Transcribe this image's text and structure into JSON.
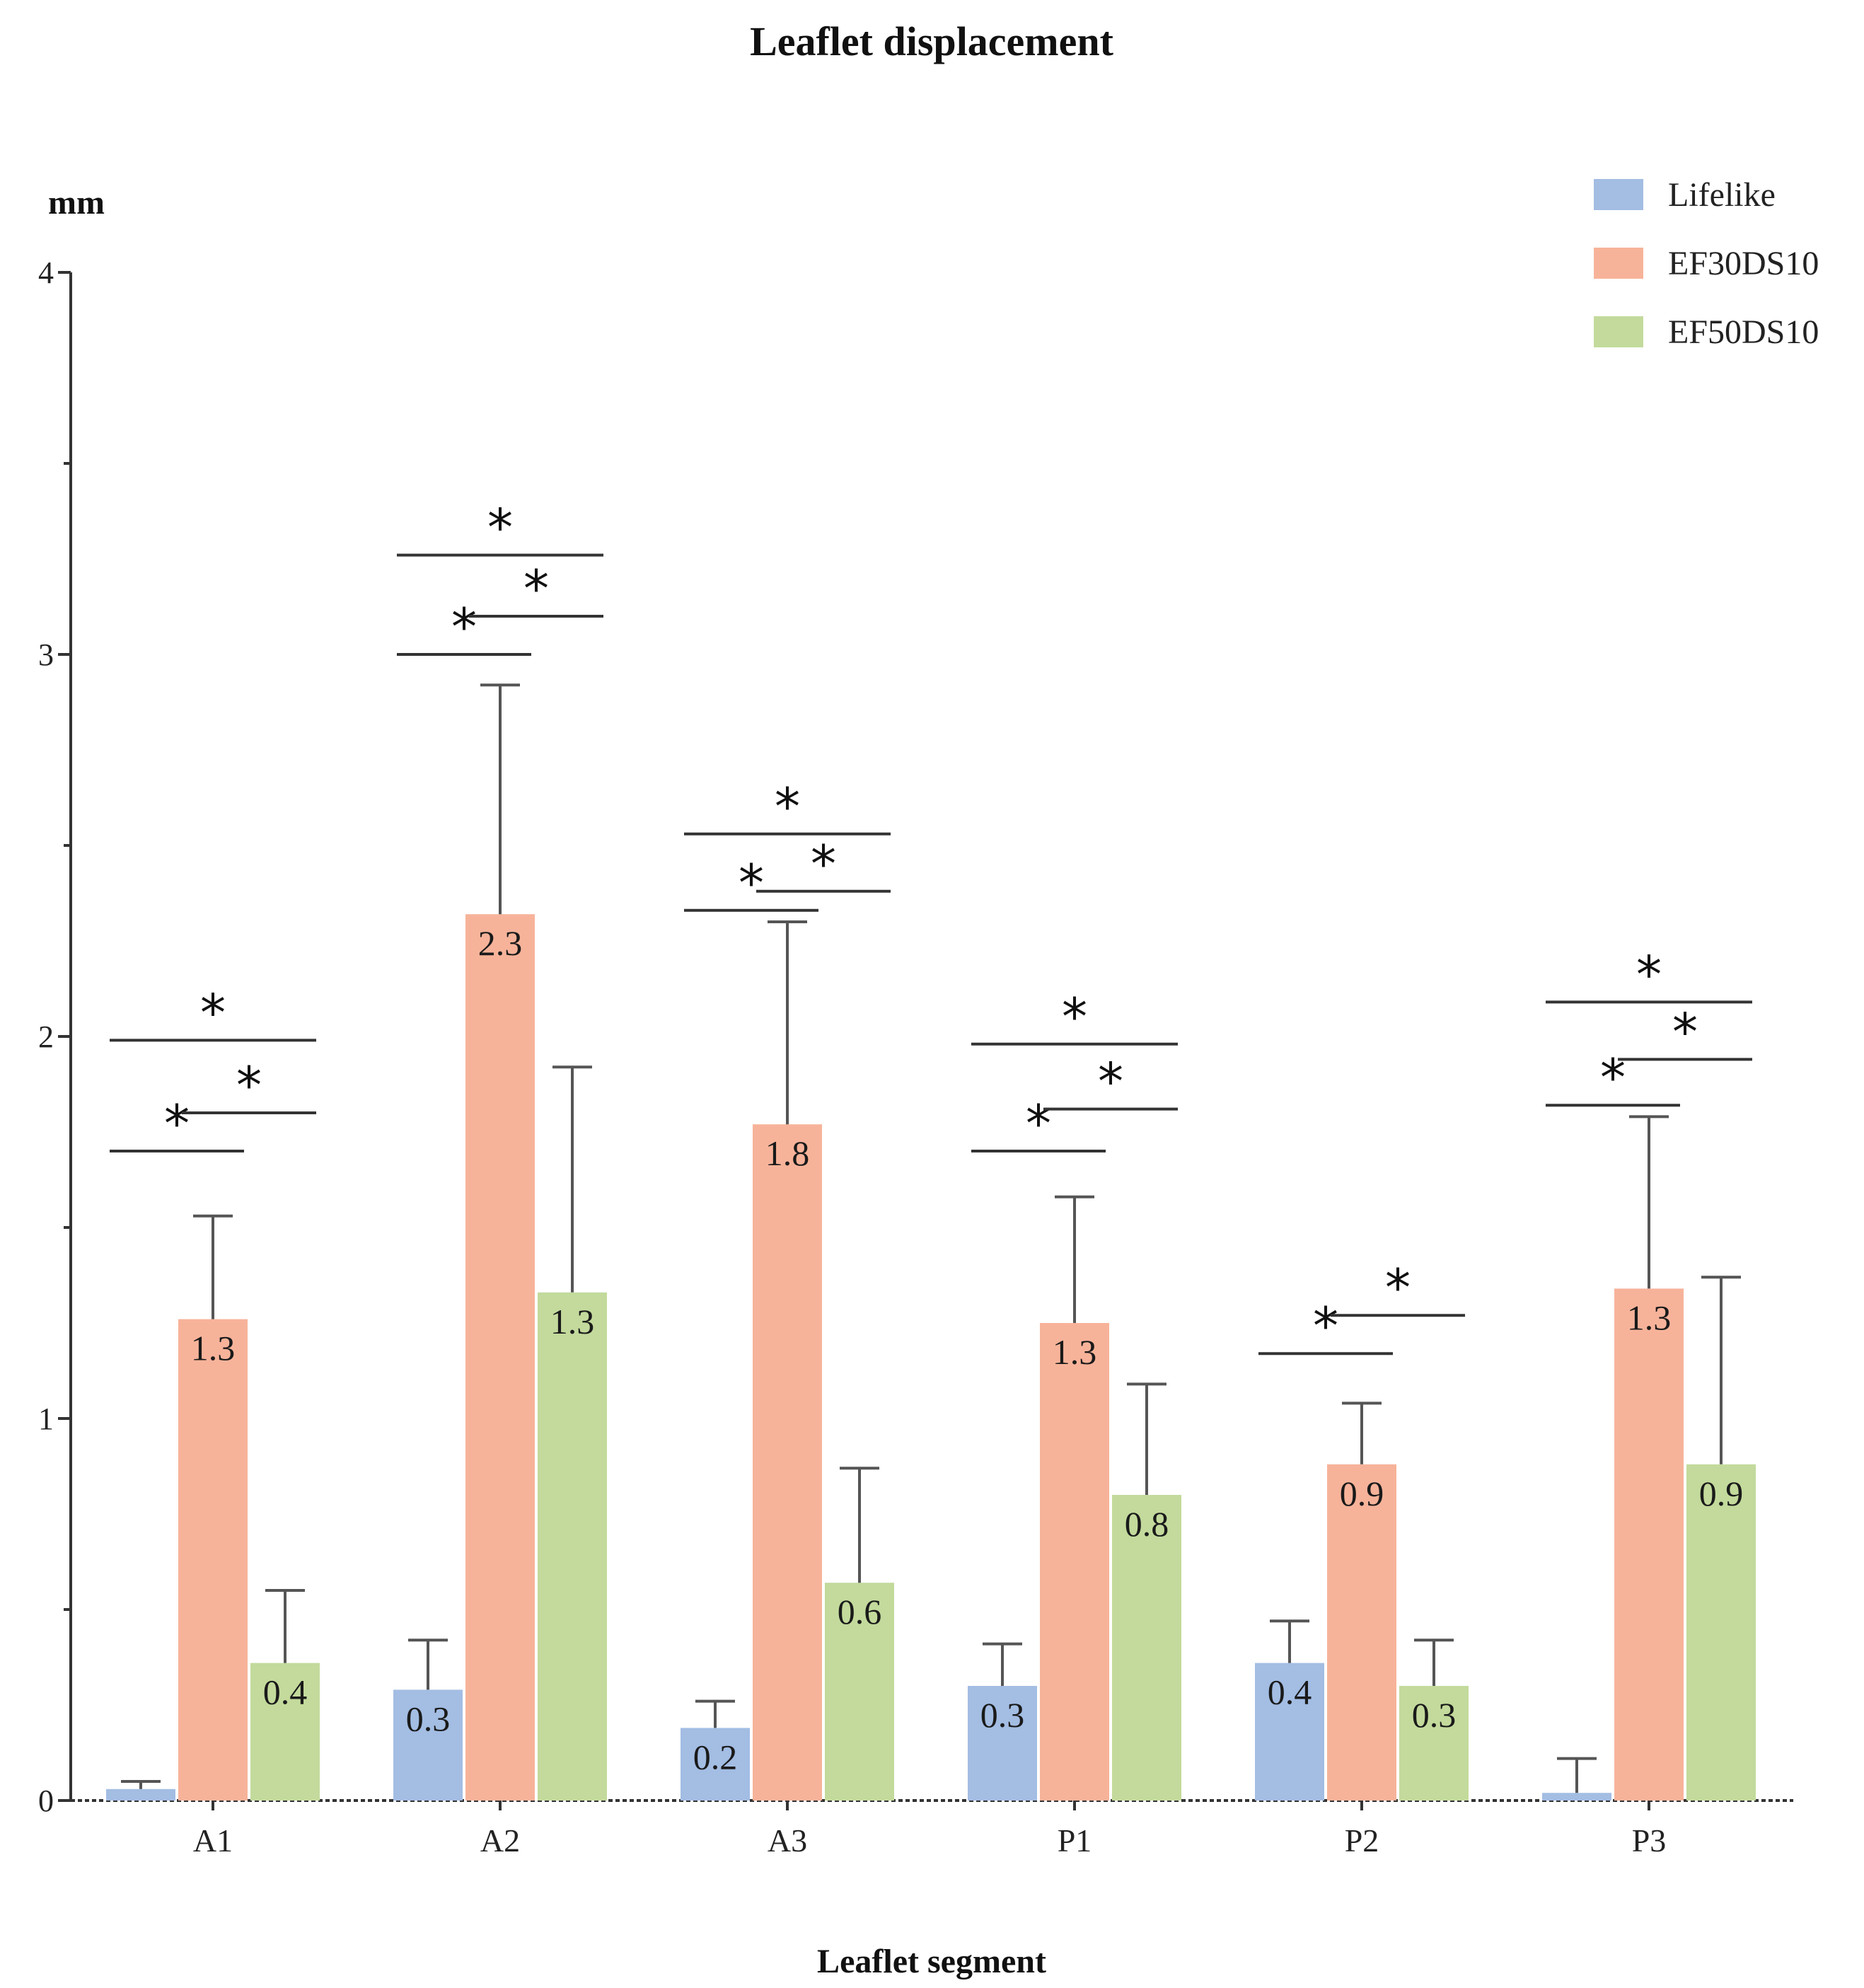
{
  "chart_data": {
    "type": "bar",
    "title": "Leaflet displacement",
    "xlabel": "Leaflet segment",
    "ylabel": "mm",
    "ylim": [
      0,
      4
    ],
    "yticks": [
      0,
      1,
      2,
      3,
      4
    ],
    "yminor_step": 0.5,
    "legend_position": "top-right",
    "categories": [
      "A1",
      "A2",
      "A3",
      "P1",
      "P2",
      "P3"
    ],
    "series": [
      {
        "name": "Lifelike",
        "color": "#a3bde3",
        "values": [
          0.03,
          0.29,
          0.19,
          0.3,
          0.36,
          0.02
        ],
        "errors": [
          0.02,
          0.13,
          0.07,
          0.11,
          0.11,
          0.09
        ],
        "labels": [
          "",
          "0.3",
          "0.2",
          "0.3",
          "0.4",
          ""
        ]
      },
      {
        "name": "EF30DS10",
        "color": "#f7b39a",
        "values": [
          1.26,
          2.32,
          1.77,
          1.25,
          0.88,
          1.34
        ],
        "errors": [
          0.27,
          0.6,
          0.53,
          0.33,
          0.16,
          0.45
        ],
        "labels": [
          "1.3",
          "2.3",
          "1.8",
          "1.3",
          "0.9",
          "1.3"
        ]
      },
      {
        "name": "EF50DS10",
        "color": "#c3da9c",
        "values": [
          0.36,
          1.33,
          0.57,
          0.8,
          0.3,
          0.88
        ],
        "errors": [
          0.19,
          0.59,
          0.3,
          0.29,
          0.12,
          0.49
        ],
        "labels": [
          "0.4",
          "1.3",
          "0.6",
          "0.8",
          "0.3",
          "0.9"
        ]
      }
    ],
    "significance": [
      {
        "category": "A1",
        "pair": [
          "Lifelike",
          "EF30DS10"
        ],
        "y": 1.7,
        "symbol": "*"
      },
      {
        "category": "A1",
        "pair": [
          "EF30DS10",
          "EF50DS10"
        ],
        "y": 1.8,
        "symbol": "*"
      },
      {
        "category": "A1",
        "pair": [
          "Lifelike",
          "EF50DS10"
        ],
        "y": 1.99,
        "symbol": "*"
      },
      {
        "category": "A2",
        "pair": [
          "Lifelike",
          "EF30DS10"
        ],
        "y": 3.0,
        "symbol": "*"
      },
      {
        "category": "A2",
        "pair": [
          "EF30DS10",
          "EF50DS10"
        ],
        "y": 3.1,
        "symbol": "*"
      },
      {
        "category": "A2",
        "pair": [
          "Lifelike",
          "EF50DS10"
        ],
        "y": 3.26,
        "symbol": "*"
      },
      {
        "category": "A3",
        "pair": [
          "Lifelike",
          "EF30DS10"
        ],
        "y": 2.33,
        "symbol": "*"
      },
      {
        "category": "A3",
        "pair": [
          "EF30DS10",
          "EF50DS10"
        ],
        "y": 2.38,
        "symbol": "*"
      },
      {
        "category": "A3",
        "pair": [
          "Lifelike",
          "EF50DS10"
        ],
        "y": 2.53,
        "symbol": "*"
      },
      {
        "category": "P1",
        "pair": [
          "Lifelike",
          "EF30DS10"
        ],
        "y": 1.7,
        "symbol": "*"
      },
      {
        "category": "P1",
        "pair": [
          "EF30DS10",
          "EF50DS10"
        ],
        "y": 1.81,
        "symbol": "*"
      },
      {
        "category": "P1",
        "pair": [
          "Lifelike",
          "EF50DS10"
        ],
        "y": 1.98,
        "symbol": "*"
      },
      {
        "category": "P2",
        "pair": [
          "Lifelike",
          "EF30DS10"
        ],
        "y": 1.17,
        "symbol": "*"
      },
      {
        "category": "P2",
        "pair": [
          "EF30DS10",
          "EF50DS10"
        ],
        "y": 1.27,
        "symbol": "*"
      },
      {
        "category": "P3",
        "pair": [
          "Lifelike",
          "EF30DS10"
        ],
        "y": 1.82,
        "symbol": "*"
      },
      {
        "category": "P3",
        "pair": [
          "EF30DS10",
          "EF50DS10"
        ],
        "y": 1.94,
        "symbol": "*"
      },
      {
        "category": "P3",
        "pair": [
          "Lifelike",
          "EF50DS10"
        ],
        "y": 2.09,
        "symbol": "*"
      }
    ]
  }
}
